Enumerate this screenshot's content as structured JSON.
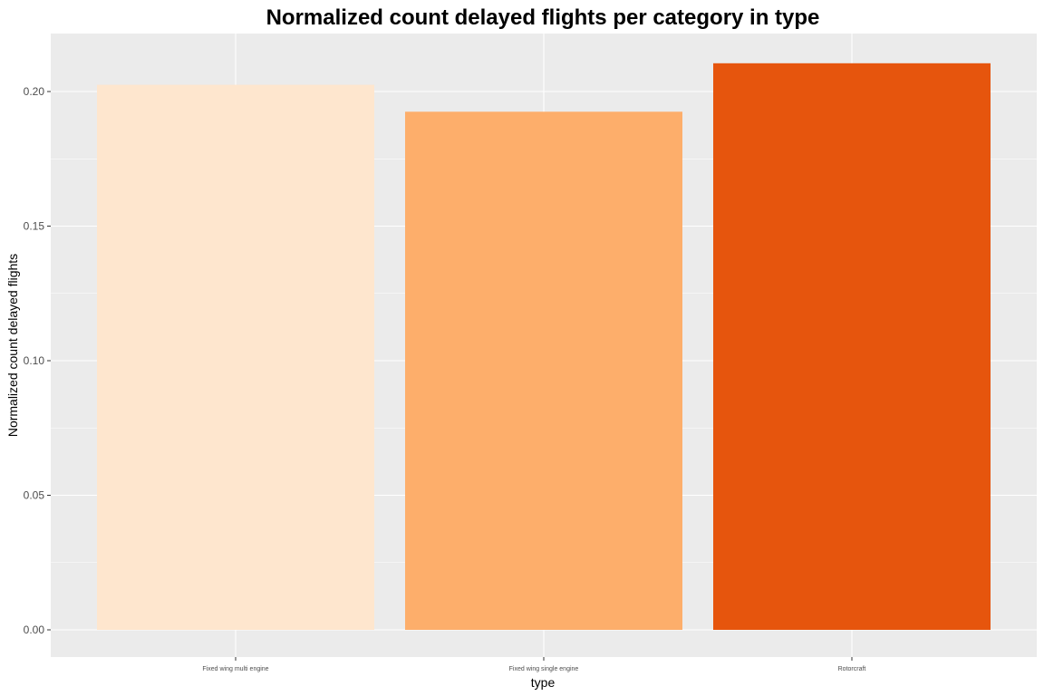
{
  "chart_data": {
    "type": "bar",
    "title": "Normalized count delayed flights per category in type",
    "xlabel": "type",
    "ylabel": "Normalized count delayed flights",
    "categories": [
      "Fixed wing multi engine",
      "Fixed wing single engine",
      "Rotorcraft"
    ],
    "values": [
      0.2025,
      0.1925,
      0.2105
    ],
    "colors": [
      "#fee6ce",
      "#fdae6b",
      "#e6550d"
    ],
    "ylim": [
      -0.01,
      0.22
    ],
    "yticks": [
      0.0,
      0.05,
      0.1,
      0.15,
      0.2
    ],
    "ytick_labels": [
      "0.00",
      "0.05",
      "0.10",
      "0.15",
      "0.20"
    ],
    "grid": true,
    "legend": "none",
    "panel_background": "#ebebeb",
    "grid_color": "#ffffff"
  }
}
